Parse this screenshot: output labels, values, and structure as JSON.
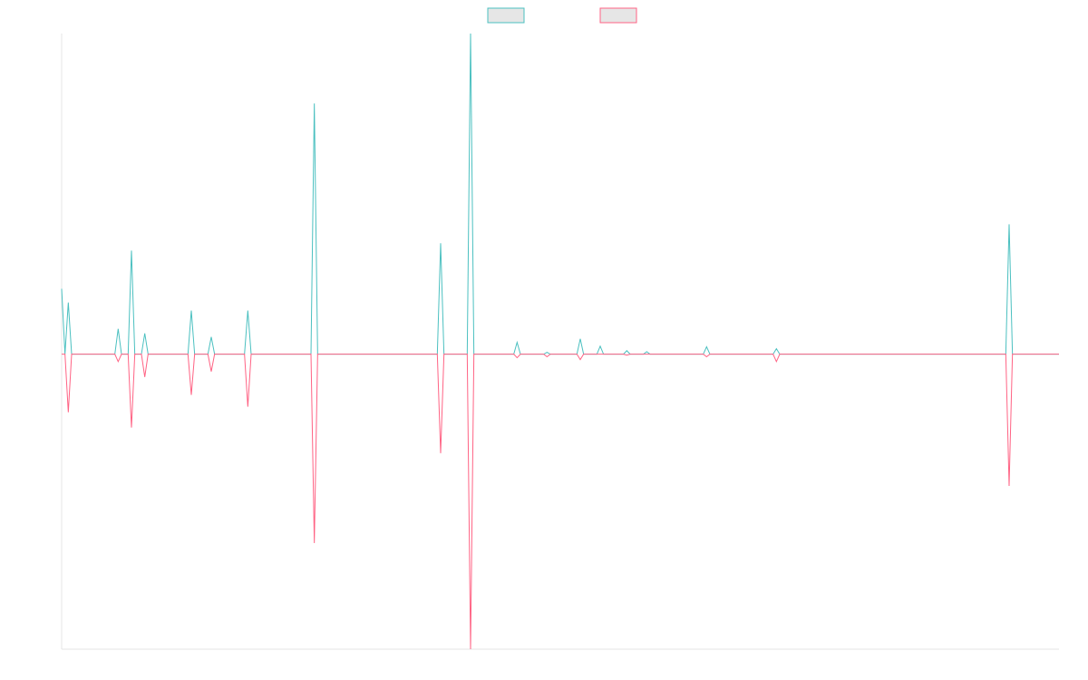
{
  "chart_data": {
    "type": "line",
    "x": [
      0,
      1,
      2,
      3,
      16,
      17,
      18,
      20,
      21,
      22,
      24,
      25,
      26,
      38,
      39,
      40,
      44,
      45,
      46,
      55,
      56,
      57,
      75,
      76,
      77,
      113,
      114,
      115,
      122,
      123,
      124,
      136,
      137,
      138,
      145,
      146,
      147,
      155,
      156,
      157,
      161,
      162,
      163,
      169,
      170,
      171,
      175,
      176,
      177,
      193,
      194,
      195,
      214,
      215,
      216,
      284,
      285,
      286,
      300
    ],
    "xlim": [
      0,
      300
    ],
    "ylim": [
      -92,
      100
    ],
    "series": [
      {
        "color": "#4bc0c0",
        "values": [
          20.4,
          0,
          16.1,
          0,
          0,
          7.9,
          0,
          0,
          32.3,
          0,
          0,
          6.5,
          0,
          0,
          13.6,
          0,
          0,
          5.4,
          0,
          0,
          13.6,
          0,
          0,
          78.2,
          0,
          0,
          34.6,
          0,
          0,
          100,
          0,
          0,
          3.7,
          0,
          0,
          0.6,
          0,
          0,
          4.8,
          0,
          0,
          2.5,
          0,
          0,
          1.1,
          0,
          0,
          0.8,
          0,
          0,
          2.3,
          0,
          0,
          1.7,
          0,
          0,
          40.5,
          0,
          0
        ]
      },
      {
        "color": "#ff6384",
        "values": [
          0,
          0,
          -18.1,
          0,
          0,
          -2.3,
          0,
          0,
          -22.9,
          0,
          0,
          -7.1,
          0,
          0,
          -12.7,
          0,
          0,
          -5.4,
          0,
          0,
          -16.4,
          0,
          0,
          -58.9,
          0,
          0,
          -30.9,
          0,
          0,
          -92,
          0,
          0,
          -1.1,
          0,
          0,
          -0.8,
          0,
          0,
          -1.7,
          0,
          0,
          0,
          0,
          0,
          -0.3,
          0,
          0,
          0,
          0,
          0,
          -0.8,
          0,
          0,
          -2.3,
          0,
          0,
          -41.1,
          0,
          0
        ]
      }
    ]
  }
}
